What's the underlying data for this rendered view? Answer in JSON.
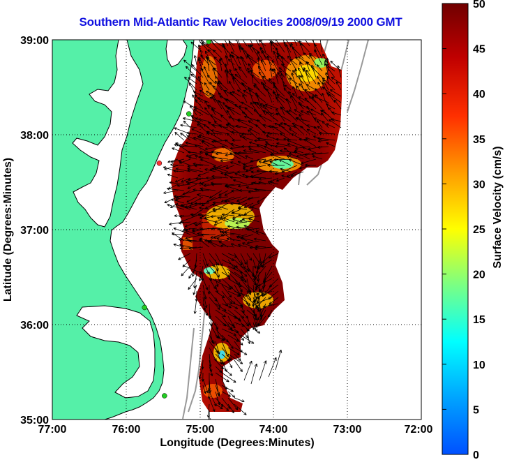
{
  "title": "Southern Mid-Atlantic Raw Velocities 2008/09/19 2000 GMT",
  "axes": {
    "xlabel": "Longitude (Degrees:Minutes)",
    "ylabel": "Latitude (Degrees:Minutes)",
    "x_ticks": [
      "77:00",
      "76:00",
      "75:00",
      "74:00",
      "73:00",
      "72:00"
    ],
    "y_ticks": [
      "39:00",
      "38:00",
      "37:00",
      "36:00",
      "35:00"
    ],
    "x_range": [
      -77,
      -72
    ],
    "y_range": [
      35,
      39
    ],
    "grid": "dotted"
  },
  "colorbar": {
    "label": "Surface Velocity (cm/s)",
    "ticks": [
      "50",
      "45",
      "40",
      "35",
      "30",
      "25",
      "20",
      "15",
      "10",
      "5",
      "0"
    ],
    "range": [
      0,
      50
    ],
    "colormap": "jet"
  },
  "colors": {
    "land": "#55f0a8",
    "title": "#1010e0",
    "high_speed": "#7a0000",
    "arrows": "#000000",
    "bathymetry": "#999999"
  },
  "stations": [
    {
      "lon": -74.88,
      "lat": 38.98,
      "color": "#22cc22"
    },
    {
      "lon": -75.15,
      "lat": 38.22,
      "color": "#22cc22"
    },
    {
      "lon": -75.55,
      "lat": 37.7,
      "color": "#ff3030"
    },
    {
      "lon": -75.75,
      "lat": 36.18,
      "color": "#22cc22"
    },
    {
      "lon": -75.48,
      "lat": 35.25,
      "color": "#22cc22"
    }
  ]
}
